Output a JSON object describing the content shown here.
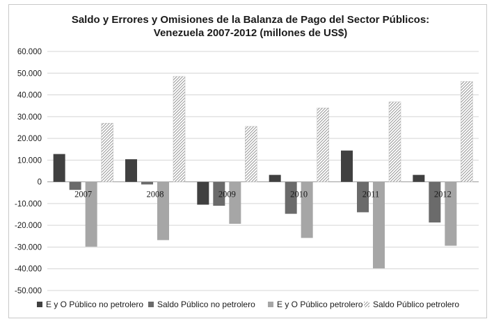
{
  "chart_data": {
    "type": "bar",
    "title": [
      "Saldo y Errores y Omisiones de la Balanza de Pago del Sector Públicos:",
      "Venezuela 2007-2012 (millones de US$)"
    ],
    "categories": [
      "2007",
      "2008",
      "2009",
      "2010",
      "2011",
      "2012"
    ],
    "ylim": [
      -50000,
      60000
    ],
    "yticks": [
      60000,
      50000,
      40000,
      30000,
      20000,
      10000,
      0,
      -10000,
      -20000,
      -30000,
      -40000,
      -50000
    ],
    "ytick_labels": [
      "60.000",
      "50.000",
      "40.000",
      "30.000",
      "20.000",
      "10.000",
      "0",
      "-10.000",
      "-20.000",
      "-30.000",
      "-40.000",
      "-50.000"
    ],
    "grid": true,
    "legend_position": "bottom",
    "series": [
      {
        "name": "E y O Público no petrolero",
        "values": [
          12800,
          10400,
          -10500,
          3200,
          14400,
          3200
        ],
        "color": "#404040",
        "pattern": "solid"
      },
      {
        "name": "Saldo Público no petrolero",
        "values": [
          -3700,
          -1200,
          -11000,
          -14700,
          -14000,
          -18700
        ],
        "color": "#6b6b6b",
        "pattern": "solid"
      },
      {
        "name": "E y O Público petrolero",
        "values": [
          -29800,
          -26800,
          -19300,
          -25800,
          -39800,
          -29400
        ],
        "color": "#a6a6a6",
        "pattern": "solid"
      },
      {
        "name": "Saldo Público petrolero",
        "values": [
          27000,
          48500,
          25500,
          34000,
          36800,
          46200
        ],
        "color": "#8c8c8c",
        "pattern": "hatch"
      }
    ]
  }
}
